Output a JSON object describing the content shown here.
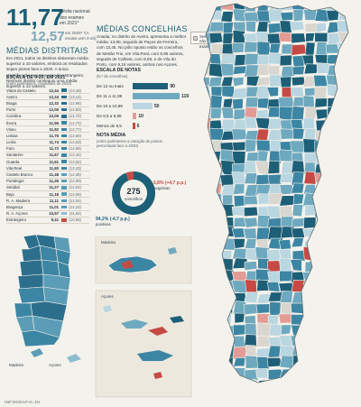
{
  "headline": {
    "value": "11,77",
    "label": "Média nacional dos exames em 2021*",
    "prev_value": "12,57",
    "prev_label": "em 2020* *(A escala vem 0-20)"
  },
  "districts": {
    "title": "MÉDIAS DISTRITAIS",
    "text": "Em 2021, todos os distritos obtiveram média superior a 10 valores, embora os resultados sejam piores face a 2020. A única classificação negativa veio do estrangeiro. Nenhum distrito conseguiu uma média superior a 13 valores.",
    "table_title": "ESCALA DE 0-20, EM 2021",
    "table_note": "(entre parênteses, resultados de 2020)",
    "rows": [
      {
        "name": "Viana do Castelo",
        "value": "12,44",
        "prev": "(13,18)",
        "color": "#2c6f8c"
      },
      {
        "name": "Aveiro",
        "value": "12,34",
        "prev": "(13,14)",
        "color": "#2c6f8c"
      },
      {
        "name": "Braga",
        "value": "12,32",
        "prev": "(12,98)",
        "color": "#2c6f8c"
      },
      {
        "name": "Porto",
        "value": "12,06",
        "prev": "(12,83)",
        "color": "#2c6f8c"
      },
      {
        "name": "Coimbra",
        "value": "12,05",
        "prev": "(12,72)",
        "color": "#2c6f8c"
      },
      {
        "name": "Évora",
        "value": "11,96",
        "prev": "(12,74)",
        "color": "#3d86a3"
      },
      {
        "name": "Viseu",
        "value": "11,92",
        "prev": "(12,77)",
        "color": "#3d86a3"
      },
      {
        "name": "Lisboa",
        "value": "11,76",
        "prev": "(12,60)",
        "color": "#3d86a3"
      },
      {
        "name": "Leiria",
        "value": "11,74",
        "prev": "(12,53)",
        "color": "#3d86a3"
      },
      {
        "name": "Faro",
        "value": "11,72",
        "prev": "(12,59)",
        "color": "#3d86a3"
      },
      {
        "name": "Santarém",
        "value": "11,67",
        "prev": "(12,44)",
        "color": "#3d86a3"
      },
      {
        "name": "Guarda",
        "value": "11,61",
        "prev": "(12,52)",
        "color": "#3d86a3"
      },
      {
        "name": "Vila Real",
        "value": "11,60",
        "prev": "(12,43)",
        "color": "#3d86a3"
      },
      {
        "name": "Castelo Branco",
        "value": "11,48",
        "prev": "(12,35)",
        "color": "#5b9db7"
      },
      {
        "name": "Portalegre",
        "value": "11,35",
        "prev": "(12,09)",
        "color": "#5b9db7"
      },
      {
        "name": "Setúbal",
        "value": "11,27",
        "prev": "(12,04)",
        "color": "#5b9db7"
      },
      {
        "name": "Beja",
        "value": "11,18",
        "prev": "(12,06)",
        "color": "#5b9db7"
      },
      {
        "name": "R. A. Madeira",
        "value": "11,11",
        "prev": "(12,04)",
        "color": "#5b9db7"
      },
      {
        "name": "Bragança",
        "value": "11,01",
        "prev": "(12,23)",
        "color": "#5b9db7"
      },
      {
        "name": "R. A. Açores",
        "value": "10,57",
        "prev": "(11,54)",
        "color": "#8fbdd0"
      },
      {
        "name": "Estrangeiro",
        "value": "9,41",
        "prev": "(10,59)",
        "color": "#c54a45"
      }
    ]
  },
  "councils": {
    "title": "MÉDIAS CONCELHIAS",
    "text": "Anadia, no distrito de Aveiro, apresenta a melhor média: 13,80, seguido de Paços de Ferreira, com 13,45. No pólo oposto estão os concelhos de Mesão Frio, em Vila Real, com 8,95 valores, seguido de Calheta, com 9,09, e de Vila do Porto, com 9,16 valores, ambos nos Açores.",
    "legend": "Sem dados ou não se realizaram exames"
  },
  "scale": {
    "title": "ESCALA DE NOTAS",
    "note": "(N.º de concelhos)",
    "rows": [
      {
        "label": "De 12 ou mais",
        "value": 90,
        "color": "#1d5f77",
        "text_color": "#ffffff"
      },
      {
        "label": "De 11 a 11,99",
        "value": 119,
        "color": "#6ea9bf",
        "text_color": "#1e2a33"
      },
      {
        "label": "De 10 a 10,99",
        "value": 50,
        "color": "#b9d6e1",
        "text_color": "#1e2a33"
      },
      {
        "label": "De 9,5 a 9,99",
        "value": 10,
        "color": "#e39b95",
        "text_color": "#1e2a33"
      },
      {
        "label": "Menos de 9,5",
        "value": 6,
        "color": "#c54a45",
        "text_color": "#1e2a33"
      }
    ]
  },
  "note_chart": {
    "title": "NOTA MÉDIA",
    "subtitle": "(entre parênteses a variação de pontos percentuais face a 2020)",
    "center_value": "275",
    "center_label": "concelhos",
    "negative_label": "5,8% (+4,7 p.p.)",
    "negative_word": "negativas",
    "positive_label": "94,2% (-4,7 p.p.)",
    "positive_word": "positivas",
    "donut_data": [
      {
        "name": "positivas",
        "value": 94.2,
        "color": "#1d5f77"
      },
      {
        "name": "negativas",
        "value": 5.8,
        "color": "#c54a45"
      }
    ]
  },
  "map_labels": {
    "madeira": "Madeira",
    "acores": "Açores",
    "inset_madeira": "Madeira",
    "inset_acores": "Açores"
  },
  "footer": "INFOGRAFIA JN"
}
